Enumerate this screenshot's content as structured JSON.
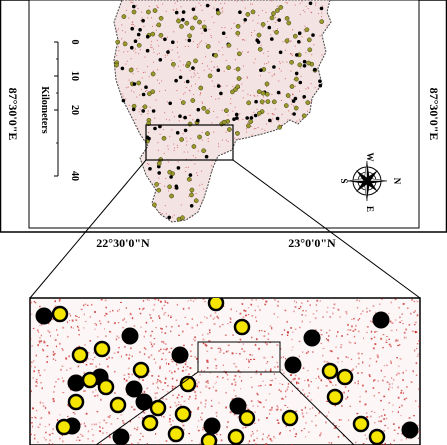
{
  "top_map": {
    "longitude_labels": [
      "87°30'0\"E",
      "87°30'0\"E"
    ],
    "latitude_labels": [
      "22°30'0\"N",
      "23°0'0\"N"
    ],
    "scale_bar": {
      "ticks": [
        "0",
        "10",
        "20",
        "40"
      ],
      "unit": "Kilometers"
    },
    "compass": {
      "north": "N",
      "south": "S",
      "east": "E",
      "west": "W"
    }
  },
  "inset_map": {
    "legend_colors": {
      "filled_point": "#000000",
      "ring_point": "#f4e600",
      "speckle": "#c62020"
    }
  }
}
